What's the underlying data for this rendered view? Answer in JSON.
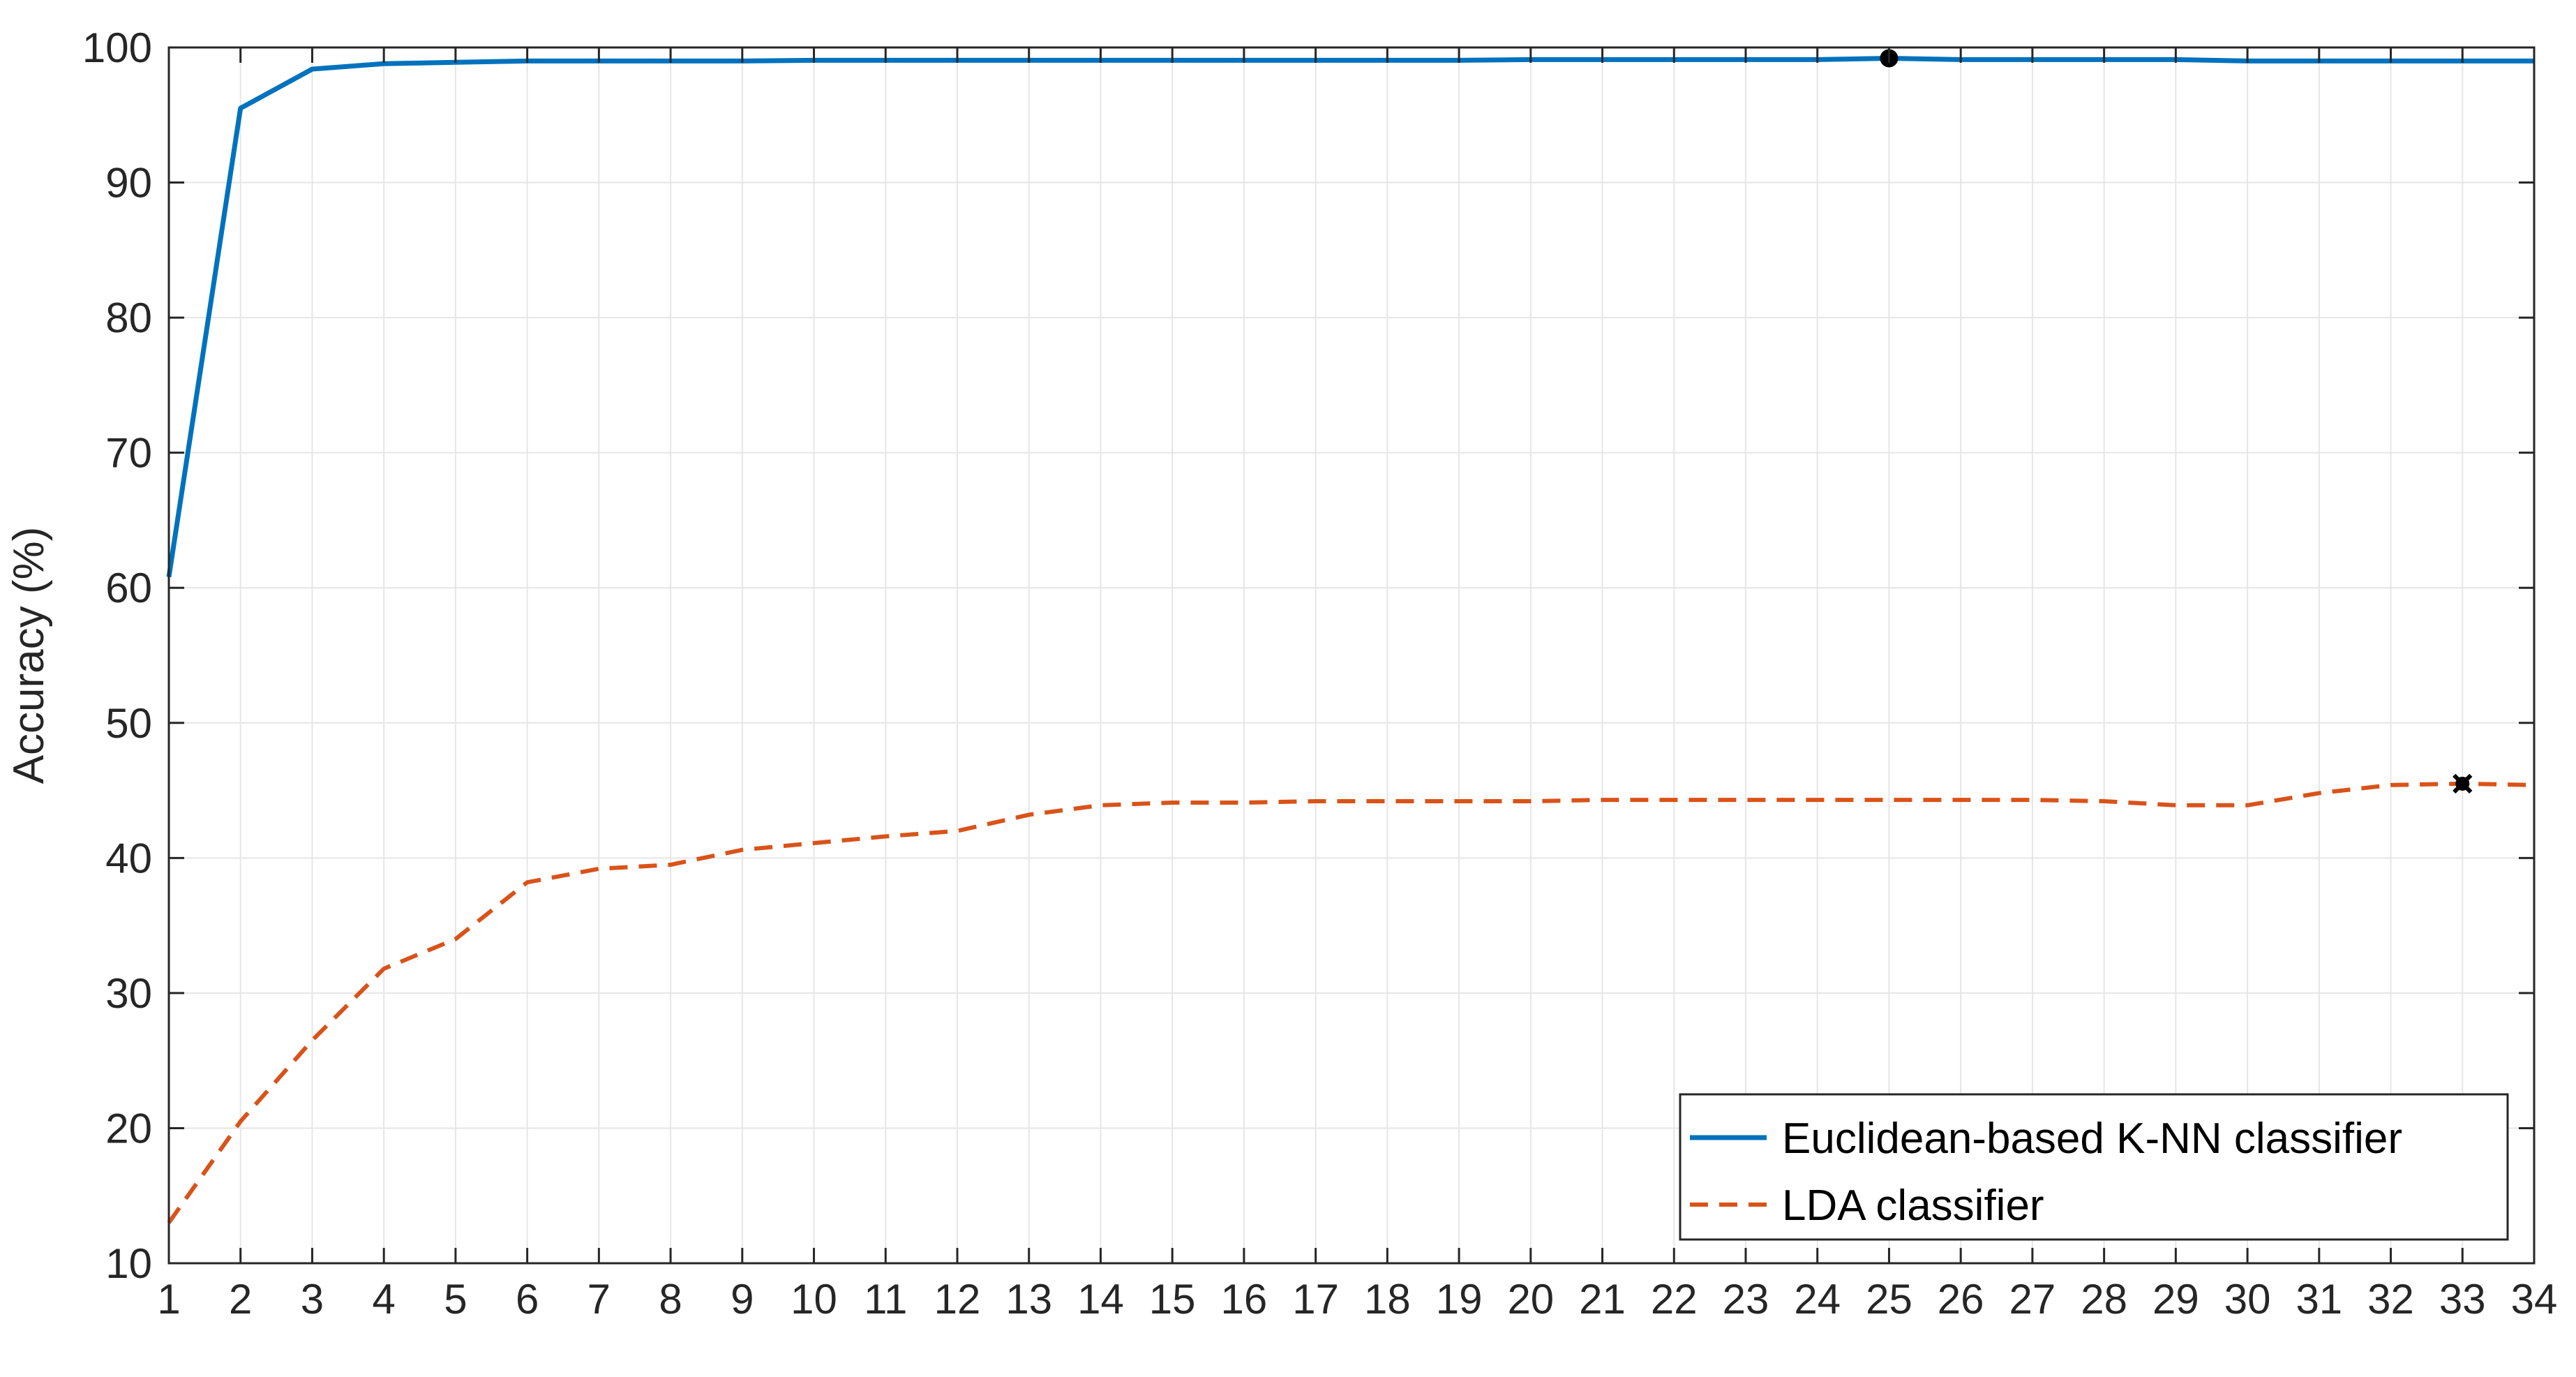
{
  "chart_data": {
    "type": "line",
    "title": "",
    "xlabel": "",
    "ylabel": "Accuracy (%)",
    "xlim": [
      1,
      34
    ],
    "ylim": [
      10,
      100
    ],
    "x_ticks": [
      1,
      2,
      3,
      4,
      5,
      6,
      7,
      8,
      9,
      10,
      11,
      12,
      13,
      14,
      15,
      16,
      17,
      18,
      19,
      20,
      21,
      22,
      23,
      24,
      25,
      26,
      27,
      28,
      29,
      30,
      31,
      32,
      33,
      34
    ],
    "y_ticks": [
      10,
      20,
      30,
      40,
      50,
      60,
      70,
      80,
      90,
      100
    ],
    "grid": true,
    "legend_position": "bottom-right",
    "x": [
      1,
      2,
      3,
      4,
      5,
      6,
      7,
      8,
      9,
      10,
      11,
      12,
      13,
      14,
      15,
      16,
      17,
      18,
      19,
      20,
      21,
      22,
      23,
      24,
      25,
      26,
      27,
      28,
      29,
      30,
      31,
      32,
      33,
      34
    ],
    "series": [
      {
        "name": "Euclidean-based K-NN classifier",
        "color": "#0072BD",
        "line_style": "solid",
        "values": [
          60.8,
          95.5,
          98.4,
          98.8,
          98.9,
          99.0,
          99.0,
          99.0,
          99.0,
          99.05,
          99.05,
          99.05,
          99.05,
          99.05,
          99.05,
          99.05,
          99.05,
          99.05,
          99.05,
          99.1,
          99.1,
          99.1,
          99.1,
          99.1,
          99.2,
          99.1,
          99.1,
          99.1,
          99.1,
          99.0,
          99.0,
          99.0,
          99.0,
          99.0
        ],
        "marker": {
          "x": 25,
          "y": 99.2
        }
      },
      {
        "name": "LDA classifier",
        "color": "#D95319",
        "line_style": "dashed",
        "values": [
          13.0,
          20.5,
          26.5,
          31.8,
          34.0,
          38.2,
          39.2,
          39.5,
          40.6,
          41.1,
          41.6,
          42.0,
          43.2,
          43.9,
          44.1,
          44.1,
          44.2,
          44.2,
          44.2,
          44.2,
          44.3,
          44.3,
          44.3,
          44.3,
          44.3,
          44.3,
          44.3,
          44.2,
          43.9,
          43.9,
          44.8,
          45.4,
          45.5,
          45.4
        ],
        "marker": {
          "x": 33,
          "y": 45.5
        }
      }
    ]
  },
  "colors": {
    "axis": "#262626",
    "grid": "#e6e6e6",
    "background": "#ffffff",
    "marker": "#000000"
  }
}
